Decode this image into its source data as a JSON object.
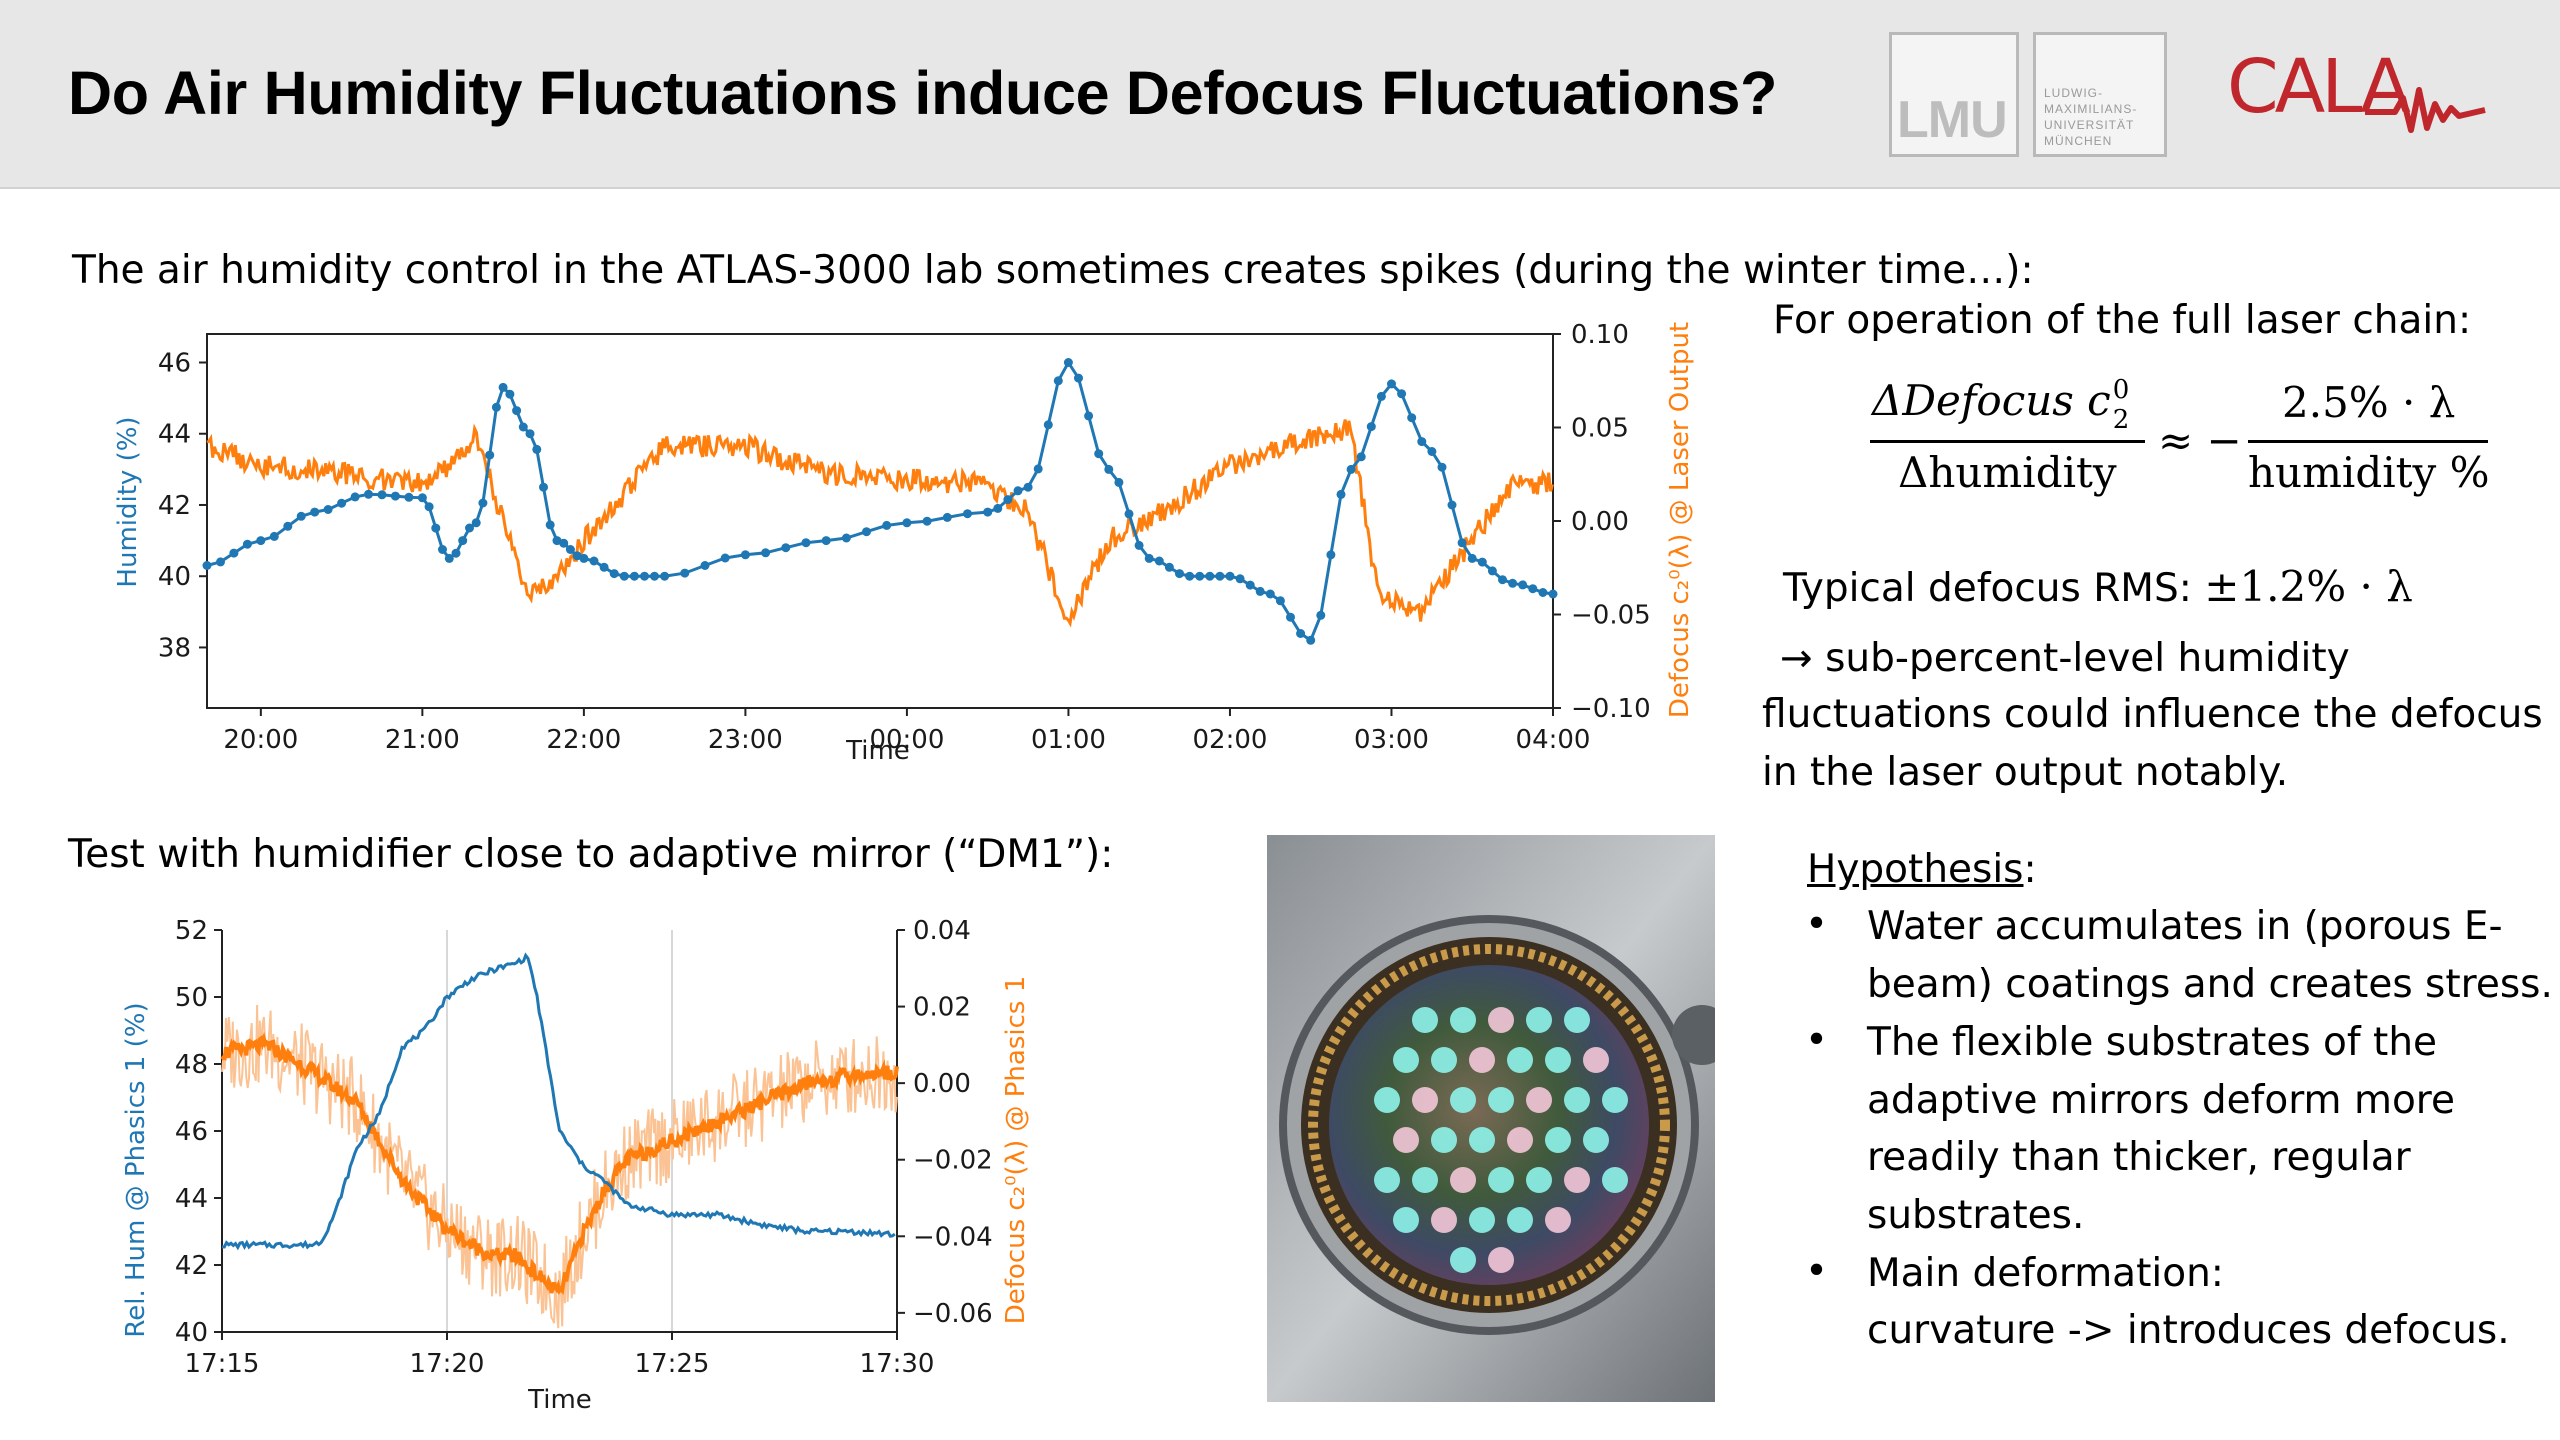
{
  "header": {
    "title": "Do Air Humidity Fluctuations induce Defocus Fluctuations?",
    "lmu_logo_text": "LMU",
    "lmu_name_lines": [
      "LUDWIG-",
      "MAXIMILIANS-",
      "UNIVERSITÄT",
      "MÜNCHEN"
    ],
    "cala_logo_text": "CALA"
  },
  "intro_text": "The air humidity control in the ATLAS-3000 lab sometimes creates spikes (during the winter time…):",
  "test_text": "Test with humidifier close to adaptive mirror (“DM1”):",
  "right_panel": {
    "operation_text": "For operation of the full laser chain:",
    "eq_lhs_num": "ΔDefocus c",
    "eq_lhs_sub": "2",
    "eq_lhs_sup": "0",
    "eq_lhs_den": "Δhumidity",
    "eq_approx": "≈ −",
    "eq_rhs_num": "2.5% · λ",
    "eq_rhs_den": "humidity %",
    "rms_label": "Typical defocus RMS: ",
    "rms_value": "±1.2% · λ",
    "arrow_lines": [
      "→ sub-percent-level humidity",
      "fluctuations could influence the defocus",
      "in the laser output notably."
    ],
    "hypothesis_title": "Hypothesis",
    "hypothesis_colon": ":",
    "hypothesis_items": [
      [
        "Water accumulates in (porous E-",
        "beam) coatings and creates stress."
      ],
      [
        "The flexible substrates of the",
        "adaptive mirrors deform more",
        "readily than thicker, regular",
        "substrates."
      ],
      [
        "Main deformation:",
        "curvature -> introduces defocus."
      ]
    ]
  },
  "colors": {
    "humidity": "#1f77b4",
    "defocus": "#ff7f0e",
    "header_bg": "#e7e7e7",
    "cala_red": "#c0272d"
  },
  "chart_data": [
    {
      "type": "line",
      "xlabel": "Time",
      "x_ticks": [
        "20:00",
        "21:00",
        "22:00",
        "23:00",
        "00:00",
        "01:00",
        "02:00",
        "03:00",
        "04:00"
      ],
      "x_range": [
        "19:40",
        "04:00"
      ],
      "ylabel_left": "Humidity (%)",
      "ylabel_right": "Defocus c₂⁰(λ) @ Laser Output",
      "y_left_ticks": [
        38,
        40,
        42,
        44,
        46
      ],
      "y_left_range": [
        36.3,
        46.8
      ],
      "y_right_ticks": [
        "0.10",
        "0.05",
        "0.00",
        "−0.05",
        "−0.10"
      ],
      "y_right_range": [
        -0.1,
        0.1
      ],
      "series": [
        {
          "name": "",
          "axis": "left",
          "color": "#1f77b4",
          "markers": true,
          "x": [
            "19:40",
            "20:00",
            "20:20",
            "20:40",
            "21:00",
            "21:10",
            "21:20",
            "21:30",
            "21:40",
            "21:50",
            "22:00",
            "22:15",
            "22:30",
            "23:00",
            "23:30",
            "00:00",
            "00:30",
            "00:45",
            "01:00",
            "01:15",
            "01:30",
            "01:45",
            "02:00",
            "02:15",
            "02:30",
            "02:45",
            "03:00",
            "03:15",
            "03:30",
            "03:45",
            "04:00"
          ],
          "y": [
            40.3,
            41.0,
            41.8,
            42.3,
            42.2,
            40.5,
            41.5,
            45.3,
            44.0,
            41.0,
            40.5,
            40.0,
            40.0,
            40.6,
            41.0,
            41.5,
            41.8,
            42.5,
            46.0,
            43.0,
            40.5,
            40.0,
            40.0,
            39.5,
            38.2,
            43.0,
            45.4,
            43.5,
            40.5,
            39.8,
            39.5
          ]
        },
        {
          "name": "",
          "axis": "right",
          "color": "#ff7f0e",
          "markers": false,
          "x": [
            "19:40",
            "20:00",
            "20:30",
            "21:00",
            "21:10",
            "21:20",
            "21:30",
            "21:40",
            "21:50",
            "22:00",
            "22:30",
            "23:00",
            "23:30",
            "00:00",
            "00:30",
            "00:45",
            "01:00",
            "01:15",
            "01:30",
            "02:00",
            "02:30",
            "02:45",
            "02:55",
            "03:10",
            "03:30",
            "03:45",
            "04:00"
          ],
          "y": [
            0.04,
            0.03,
            0.025,
            0.02,
            0.03,
            0.045,
            0.0,
            -0.04,
            -0.03,
            -0.01,
            0.04,
            0.04,
            0.025,
            0.022,
            0.02,
            0.005,
            -0.055,
            -0.01,
            0.0,
            0.03,
            0.045,
            0.05,
            -0.04,
            -0.05,
            -0.01,
            0.02,
            0.02
          ]
        }
      ]
    },
    {
      "type": "line",
      "xlabel": "Time",
      "x_ticks": [
        "17:15",
        "17:20",
        "17:25",
        "17:30"
      ],
      "x_range": [
        "17:15",
        "17:30"
      ],
      "ylabel_left": "Rel. Hum @ Phasics 1 (%)",
      "ylabel_right": "Defocus c₂⁰(λ) @ Phasics 1",
      "y_left_ticks": [
        40,
        42,
        44,
        46,
        48,
        50,
        52
      ],
      "y_left_range": [
        40,
        52
      ],
      "y_right_ticks": [
        "0.04",
        "0.02",
        "0.00",
        "−0.02",
        "−0.04",
        "−0.06"
      ],
      "y_right_range": [
        -0.065,
        0.04
      ],
      "grid": "vertical",
      "series": [
        {
          "name": "",
          "axis": "left",
          "color": "#1f77b4",
          "x": [
            0,
            1,
            2,
            2.2,
            2.5,
            3,
            3.5,
            4,
            4.5,
            5,
            5.5,
            6,
            6.5,
            6.8,
            7,
            7.5,
            8,
            8.5,
            9,
            10,
            11,
            12,
            13,
            14,
            15
          ],
          "y": [
            42.6,
            42.6,
            42.6,
            42.7,
            43.5,
            45.5,
            46.5,
            48.5,
            49.0,
            50.0,
            50.5,
            50.8,
            51.0,
            51.2,
            50.0,
            46.0,
            45.0,
            44.5,
            43.8,
            43.5,
            43.5,
            43.2,
            43.0,
            43.0,
            42.9
          ]
        },
        {
          "name": "",
          "axis": "right",
          "color": "#ff7f0e",
          "x": [
            0,
            1,
            2,
            3,
            3.5,
            4,
            4.5,
            5,
            5.5,
            6,
            6.5,
            7,
            7.5,
            8,
            8.5,
            9,
            10,
            11,
            12,
            13,
            14,
            15
          ],
          "y": [
            0.008,
            0.01,
            0.003,
            -0.005,
            -0.015,
            -0.025,
            -0.032,
            -0.038,
            -0.042,
            -0.045,
            -0.045,
            -0.05,
            -0.055,
            -0.04,
            -0.028,
            -0.02,
            -0.015,
            -0.01,
            -0.005,
            0.0,
            0.002,
            0.003
          ]
        }
      ]
    }
  ]
}
